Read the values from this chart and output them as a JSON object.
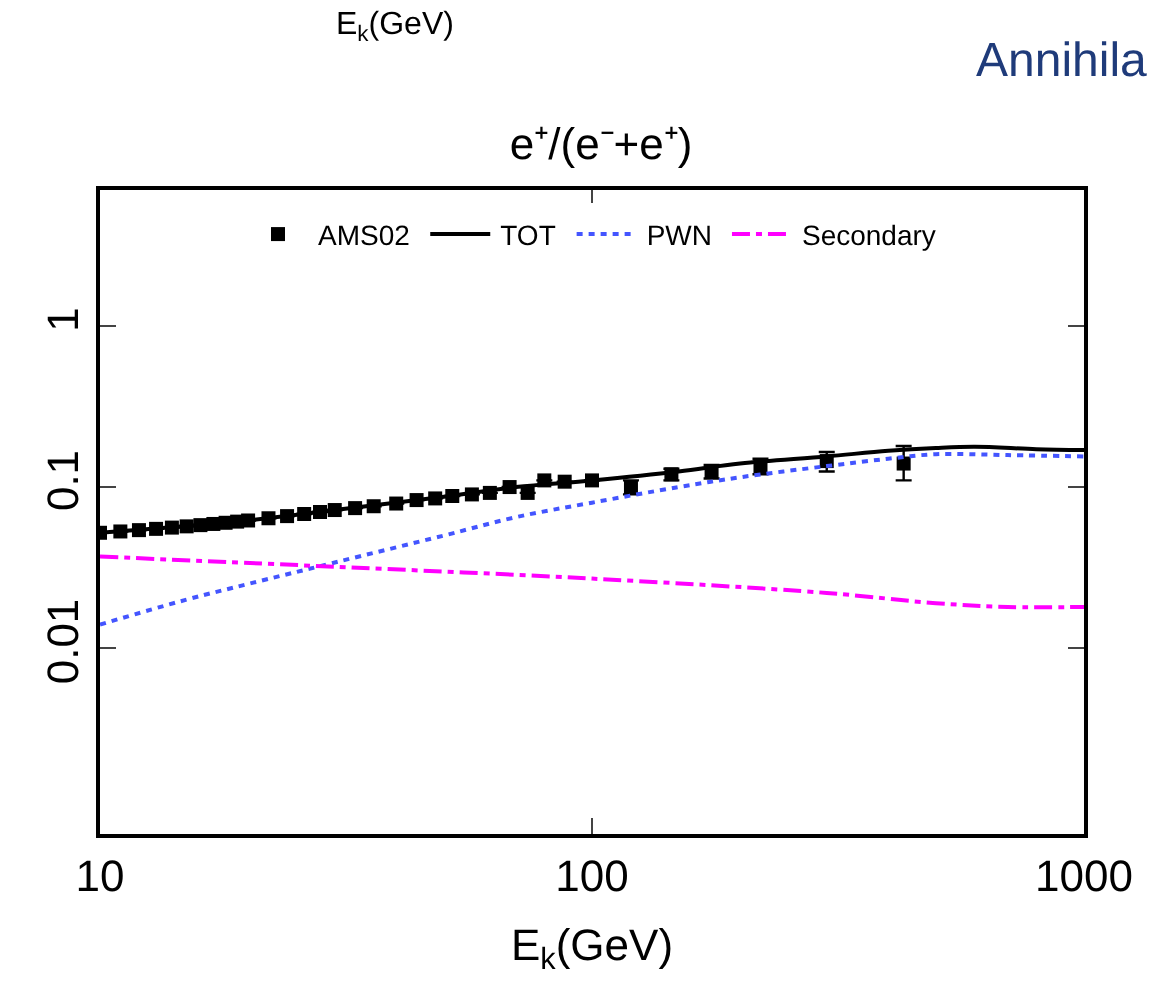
{
  "chart_data": {
    "type": "line",
    "title": "e⁺/(e⁻+e⁺)",
    "xlabel": "E$_{k}$(GeV)",
    "annotations": [
      "E$_{k}$(GeV)",
      "Annihila"
    ],
    "log": "xy",
    "xlim": [
      10,
      1000
    ],
    "xticks": [
      10,
      100,
      1000
    ],
    "ylim": [
      0.0007,
      7
    ],
    "yticks": [
      0.01,
      0.1,
      1
    ],
    "legend": "top",
    "series": [
      {
        "name": "AMS02",
        "type": "scatter",
        "marker": "square",
        "color": "#000000",
        "x": [
          10,
          11,
          12,
          13,
          14,
          15,
          16,
          17,
          18,
          19,
          20,
          22,
          24,
          26,
          28,
          30,
          33,
          36,
          40,
          44,
          48,
          52,
          57,
          62,
          68,
          74,
          80,
          88,
          100,
          120,
          145,
          175,
          220,
          300,
          430
        ],
        "values": [
          0.052,
          0.053,
          0.054,
          0.055,
          0.056,
          0.057,
          0.058,
          0.059,
          0.06,
          0.061,
          0.062,
          0.064,
          0.066,
          0.068,
          0.07,
          0.072,
          0.074,
          0.076,
          0.079,
          0.083,
          0.085,
          0.088,
          0.09,
          0.092,
          0.1,
          0.092,
          0.11,
          0.108,
          0.11,
          0.1,
          0.12,
          0.125,
          0.135,
          0.145,
          0.14
        ],
        "errors": [
          null,
          null,
          null,
          null,
          null,
          null,
          null,
          null,
          null,
          null,
          null,
          null,
          null,
          null,
          null,
          null,
          null,
          null,
          null,
          null,
          null,
          null,
          null,
          null,
          null,
          null,
          null,
          null,
          null,
          0.01,
          0.01,
          0.012,
          0.015,
          0.02,
          [
            0.11,
            0.18
          ]
        ]
      },
      {
        "name": "TOT",
        "line_style": "solid",
        "color": "#000000",
        "x": [
          10,
          20,
          30,
          50,
          70,
          100,
          150,
          200,
          300,
          400,
          500,
          600,
          800,
          1000
        ],
        "values": [
          0.052,
          0.062,
          0.072,
          0.087,
          0.1,
          0.11,
          0.125,
          0.14,
          0.155,
          0.168,
          0.175,
          0.178,
          0.172,
          0.17
        ]
      },
      {
        "name": "PWN",
        "line_style": "dotted",
        "color": "#4455ff",
        "x": [
          10,
          15,
          20,
          30,
          50,
          70,
          100,
          150,
          200,
          300,
          400,
          500,
          700,
          1000
        ],
        "values": [
          0.014,
          0.02,
          0.025,
          0.034,
          0.05,
          0.065,
          0.08,
          0.1,
          0.115,
          0.135,
          0.15,
          0.16,
          0.158,
          0.155
        ]
      },
      {
        "name": "Secondary",
        "line_style": "dashdot",
        "color": "#ff00ff",
        "x": [
          10,
          30,
          100,
          300,
          500,
          700,
          1000
        ],
        "values": [
          0.037,
          0.032,
          0.027,
          0.022,
          0.019,
          0.018,
          0.018
        ]
      }
    ]
  }
}
